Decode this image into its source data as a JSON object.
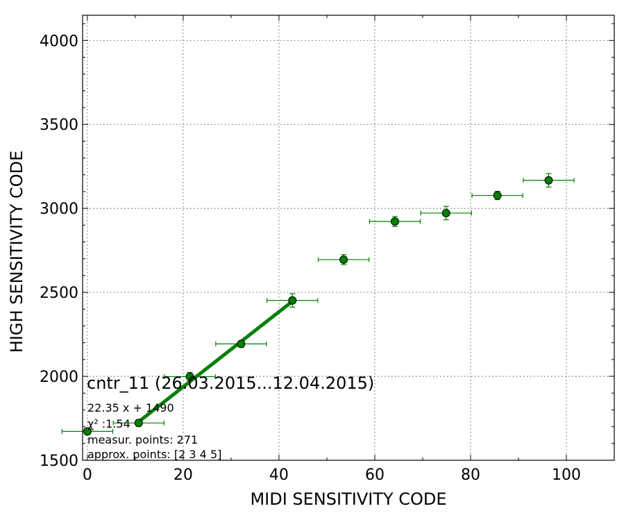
{
  "chart_data": {
    "type": "scatter",
    "xlabel": "MIDI SENSITIVITY CODE",
    "ylabel": "HIGH SENSITIVITY CODE",
    "xlim": [
      -1,
      110
    ],
    "ylim": [
      1500,
      4150
    ],
    "xticks": [
      0,
      20,
      40,
      60,
      80,
      100
    ],
    "yticks": [
      1500,
      2000,
      2500,
      3000,
      3500,
      4000
    ],
    "grid": true,
    "colors": {
      "points": "#008000",
      "fit_line": "#008000",
      "errorbars": "#008000"
    },
    "points": [
      {
        "x": 0.0,
        "y": 1672,
        "xerr": 5.3,
        "yerr": 20
      },
      {
        "x": 10.7,
        "y": 1722,
        "xerr": 5.3,
        "yerr": 20
      },
      {
        "x": 21.4,
        "y": 1998,
        "xerr": 5.3,
        "yerr": 25
      },
      {
        "x": 32.1,
        "y": 2193,
        "xerr": 5.3,
        "yerr": 20
      },
      {
        "x": 42.8,
        "y": 2452,
        "xerr": 5.3,
        "yerr": 40
      },
      {
        "x": 53.5,
        "y": 2695,
        "xerr": 5.3,
        "yerr": 30
      },
      {
        "x": 64.2,
        "y": 2922,
        "xerr": 5.3,
        "yerr": 30
      },
      {
        "x": 74.9,
        "y": 2972,
        "xerr": 5.3,
        "yerr": 40
      },
      {
        "x": 85.6,
        "y": 3077,
        "xerr": 5.3,
        "yerr": 25
      },
      {
        "x": 96.3,
        "y": 3167,
        "xerr": 5.3,
        "yerr": 40
      }
    ],
    "fit": {
      "slope": 22.35,
      "intercept": 1490,
      "x_range": [
        10.7,
        42.8
      ]
    },
    "annotations": {
      "title": "cntr_11 (26.03.2015...12.04.2015)",
      "equation": "22.35 x + 1490",
      "chi2": "χ² :1.54",
      "measur_points": "measur. points: 271",
      "approx_points": "approx. points: [2 3 4 5]"
    }
  }
}
